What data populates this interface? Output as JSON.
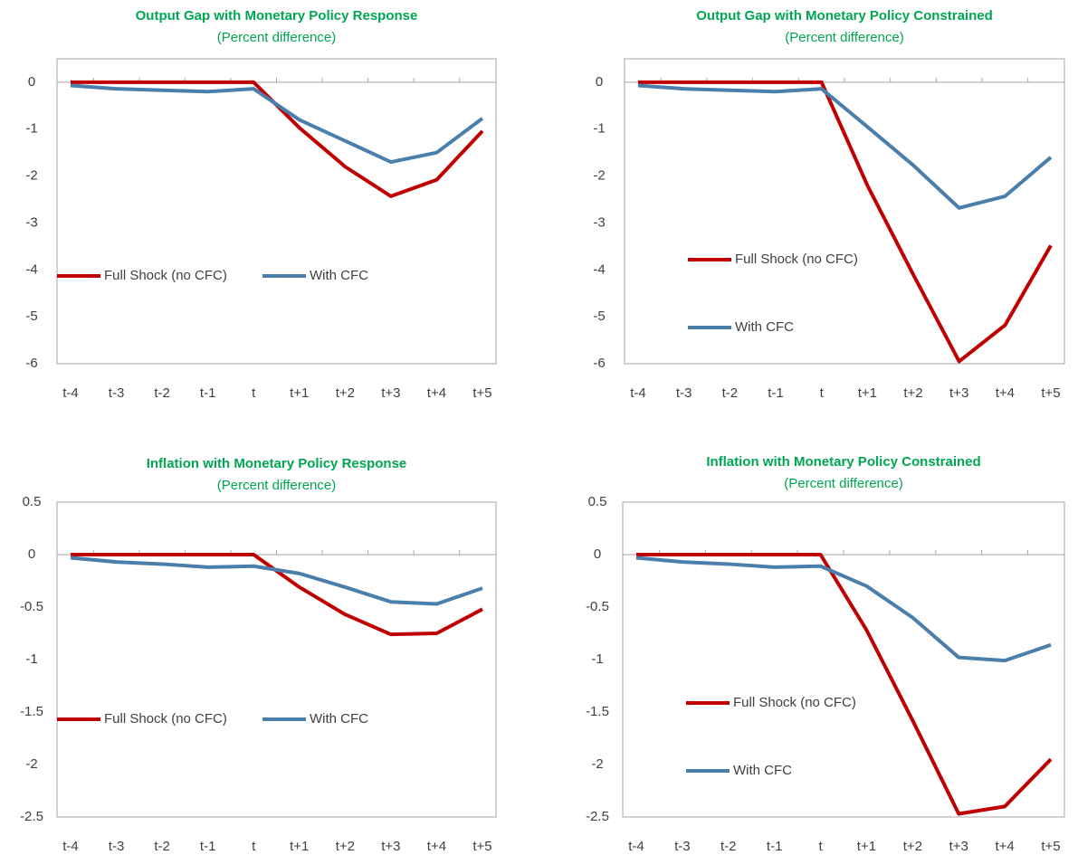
{
  "chart_data": [
    {
      "type": "line",
      "title": "Output Gap with Monetary Policy Response",
      "subtitle": "(Percent difference)",
      "categories": [
        "t-4",
        "t-3",
        "t-2",
        "t-1",
        "t",
        "t+1",
        "t+2",
        "t+3",
        "t+4",
        "t+5"
      ],
      "series": [
        {
          "name": "Full Shock (no CFC)",
          "color": "#c00000",
          "values": [
            0,
            0,
            0,
            0,
            0,
            -0.97,
            -1.8,
            -2.43,
            -2.08,
            -1.04
          ]
        },
        {
          "name": "With CFC",
          "color": "#4a7eab",
          "values": [
            -0.07,
            -0.14,
            -0.17,
            -0.2,
            -0.14,
            -0.8,
            -1.25,
            -1.7,
            -1.5,
            -0.77
          ]
        }
      ],
      "ylim": [
        -6,
        0.5
      ],
      "yticks": [
        0,
        -1,
        -2,
        -3,
        -4,
        -5,
        -6
      ],
      "legend": "row"
    },
    {
      "type": "line",
      "title": "Output Gap with Monetary Policy Constrained",
      "subtitle": "(Percent difference)",
      "categories": [
        "t-4",
        "t-3",
        "t-2",
        "t-1",
        "t",
        "t+1",
        "t+2",
        "t+3",
        "t+4",
        "t+5"
      ],
      "series": [
        {
          "name": "Full Shock (no CFC)",
          "color": "#c00000",
          "values": [
            0,
            0,
            0,
            0,
            0,
            -2.2,
            -4.1,
            -5.95,
            -5.18,
            -3.48
          ]
        },
        {
          "name": "With CFC",
          "color": "#4a7eab",
          "values": [
            -0.07,
            -0.14,
            -0.17,
            -0.2,
            -0.14,
            -0.95,
            -1.77,
            -2.68,
            -2.43,
            -1.6
          ]
        }
      ],
      "ylim": [
        -6,
        0.5
      ],
      "yticks": [
        0,
        -1,
        -2,
        -3,
        -4,
        -5,
        -6
      ],
      "legend": "column"
    },
    {
      "type": "line",
      "title": "Inflation with Monetary Policy Response",
      "subtitle": "(Percent difference)",
      "categories": [
        "t-4",
        "t-3",
        "t-2",
        "t-1",
        "t",
        "t+1",
        "t+2",
        "t+3",
        "t+4",
        "t+5"
      ],
      "series": [
        {
          "name": "Full Shock (no CFC)",
          "color": "#c00000",
          "values": [
            0,
            0,
            0,
            0,
            0,
            -0.31,
            -0.57,
            -0.76,
            -0.75,
            -0.52
          ]
        },
        {
          "name": "With CFC",
          "color": "#4a7eab",
          "values": [
            -0.03,
            -0.07,
            -0.09,
            -0.12,
            -0.11,
            -0.18,
            -0.31,
            -0.45,
            -0.47,
            -0.32
          ]
        }
      ],
      "ylim": [
        -2.5,
        0.5
      ],
      "yticks": [
        0.5,
        0,
        -0.5,
        -1,
        -1.5,
        -2,
        -2.5
      ],
      "legend": "row"
    },
    {
      "type": "line",
      "title": "Inflation with Monetary Policy Constrained",
      "subtitle": "(Percent difference)",
      "categories": [
        "t-4",
        "t-3",
        "t-2",
        "t-1",
        "t",
        "t+1",
        "t+2",
        "t+3",
        "t+4",
        "t+5"
      ],
      "series": [
        {
          "name": "Full Shock (no CFC)",
          "color": "#c00000",
          "values": [
            0,
            0,
            0,
            0,
            0,
            -0.72,
            -1.58,
            -2.47,
            -2.4,
            -1.95
          ]
        },
        {
          "name": "With CFC",
          "color": "#4a7eab",
          "values": [
            -0.03,
            -0.07,
            -0.09,
            -0.12,
            -0.11,
            -0.3,
            -0.6,
            -0.98,
            -1.01,
            -0.86
          ]
        }
      ],
      "ylim": [
        -2.5,
        0.5
      ],
      "yticks": [
        0.5,
        0,
        -0.5,
        -1,
        -1.5,
        -2,
        -2.5
      ],
      "legend": "column"
    }
  ]
}
